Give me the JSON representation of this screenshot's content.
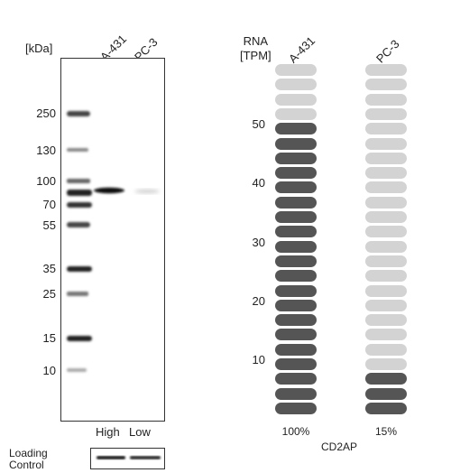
{
  "western_blot": {
    "unit_label": "[kDa]",
    "lanes": [
      "A-431",
      "PC-3"
    ],
    "markers": [
      "250",
      "130",
      "100",
      "70",
      "55",
      "35",
      "25",
      "15",
      "10"
    ],
    "lane_expression": [
      "High",
      "Low"
    ],
    "loading_control": {
      "line1": "Loading",
      "line2": "Control"
    }
  },
  "rna_panel": {
    "axis_label_line1": "RNA",
    "axis_label_line2": "[TPM]",
    "ticks": [
      "50",
      "40",
      "30",
      "20",
      "10"
    ],
    "samples": [
      {
        "name": "A-431",
        "percent": "100%",
        "filled_segments": 20,
        "total_segments": 24
      },
      {
        "name": "PC-3",
        "percent": "15%",
        "filled_segments": 3,
        "total_segments": 24
      }
    ],
    "gene": "CD2AP",
    "colors": {
      "filled": "#555555",
      "empty": "#d3d3d3"
    }
  }
}
